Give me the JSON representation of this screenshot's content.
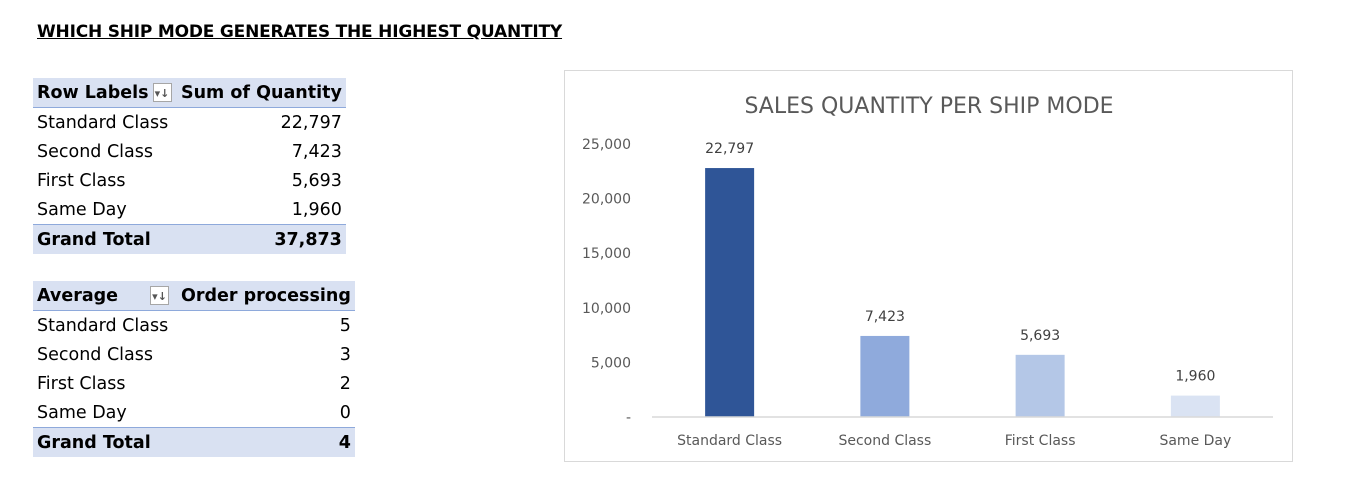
{
  "heading": "WHICH SHIP MODE GENERATES THE HIGHEST QUANTITY",
  "pivot_quantity": {
    "header": [
      "Row Labels",
      "Sum of Quantity"
    ],
    "filter_icon": "sort-filter-icon",
    "rows": [
      {
        "label": "Standard Class",
        "value": "22,797"
      },
      {
        "label": "Second Class",
        "value": "7,423"
      },
      {
        "label": "First Class",
        "value": "5,693"
      },
      {
        "label": "Same Day",
        "value": "1,960"
      }
    ],
    "total": {
      "label": "Grand Total",
      "value": "37,873"
    }
  },
  "pivot_processing": {
    "header": [
      "Average",
      "Order processing"
    ],
    "filter_icon": "sort-filter-icon",
    "rows": [
      {
        "label": "Standard Class",
        "value": "5"
      },
      {
        "label": "Second Class",
        "value": "3"
      },
      {
        "label": "First Class",
        "value": "2"
      },
      {
        "label": "Same Day",
        "value": "0"
      }
    ],
    "total": {
      "label": "Grand Total",
      "value": "4"
    }
  },
  "chart_data": {
    "type": "bar",
    "title": "SALES QUANTITY PER SHIP MODE",
    "categories": [
      "Standard Class",
      "Second Class",
      "First Class",
      "Same Day"
    ],
    "values": [
      22797,
      7423,
      5693,
      1960
    ],
    "data_labels": [
      "22,797",
      "7,423",
      "5,693",
      "1,960"
    ],
    "bar_colors": [
      "#2f5597",
      "#8faadc",
      "#b4c7e7",
      "#dae3f3"
    ],
    "ylim": [
      0,
      25000
    ],
    "yticks": [
      0,
      5000,
      10000,
      15000,
      20000,
      25000
    ],
    "ytick_labels": [
      "-",
      "5,000",
      "10,000",
      "15,000",
      "20,000",
      "25,000"
    ],
    "xlabel": "",
    "ylabel": "",
    "grid": false,
    "legend": "none"
  }
}
